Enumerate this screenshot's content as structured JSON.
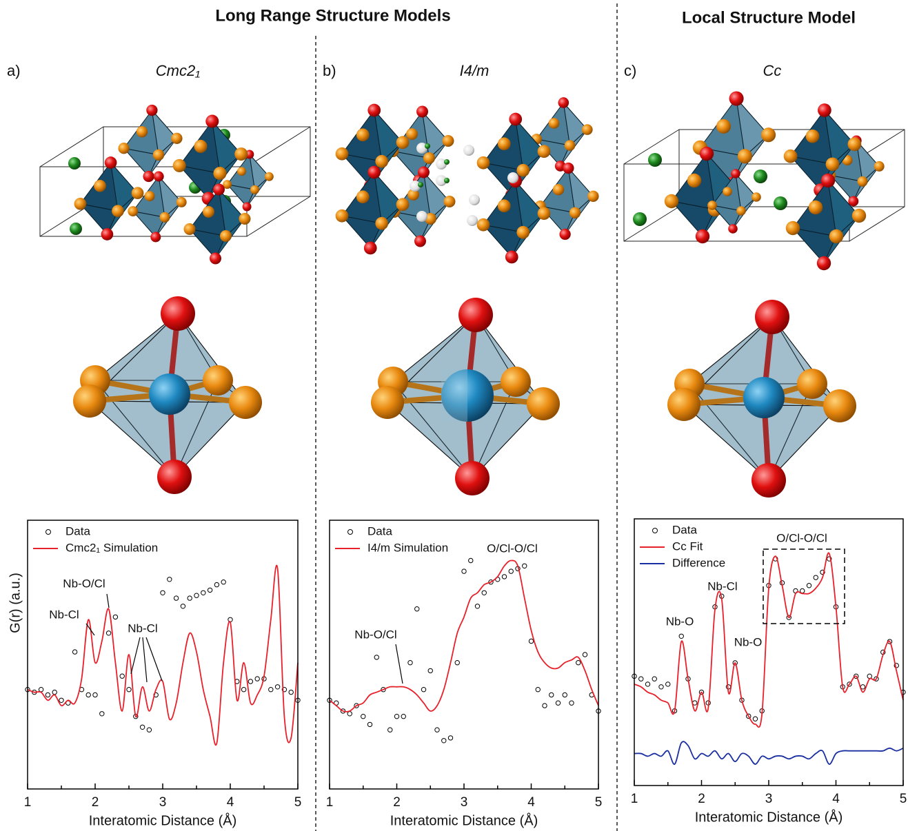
{
  "headers": [
    "Long Range Structure Models",
    "Local Structure Model"
  ],
  "chart_data": [
    {
      "type": "line",
      "panel": "a)",
      "title": "Cmc2₁",
      "x_label": "Interatomic Distance (Å)",
      "y_label": "G(r) (a.u.)",
      "xlim": [
        1,
        5
      ],
      "xticks": [
        1,
        2,
        3,
        4,
        5
      ],
      "xminorticks": [
        1.5,
        2.5,
        3.5,
        4.5
      ],
      "ylim": [
        0,
        10
      ],
      "x": [
        1.0,
        1.1,
        1.2,
        1.3,
        1.4,
        1.5,
        1.6,
        1.7,
        1.8,
        1.9,
        2.0,
        2.1,
        2.2,
        2.3,
        2.4,
        2.5,
        2.6,
        2.7,
        2.8,
        2.9,
        3.0,
        3.1,
        3.2,
        3.3,
        3.4,
        3.5,
        3.6,
        3.7,
        3.8,
        3.9,
        4.0,
        4.1,
        4.2,
        4.3,
        4.4,
        4.5,
        4.6,
        4.7,
        4.8,
        4.9,
        5.0
      ],
      "series": [
        {
          "name": "Data",
          "color": "#000000",
          "marker": "circle",
          "values": [
            3.7,
            3.6,
            3.7,
            3.5,
            3.6,
            3.3,
            3.2,
            5.1,
            3.7,
            3.5,
            3.5,
            2.8,
            5.8,
            6.4,
            4.2,
            3.7,
            2.7,
            2.3,
            2.2,
            3.5,
            7.3,
            7.8,
            7.1,
            6.8,
            7.1,
            7.2,
            7.3,
            7.4,
            7.6,
            7.7,
            6.3,
            4.0,
            3.7,
            4.0,
            4.1,
            4.1,
            3.7,
            3.8,
            3.7,
            3.6,
            3.3
          ]
        },
        {
          "name": "Cmc2₁ Simulation",
          "color": "#e8202a",
          "values": [
            3.7,
            3.6,
            3.6,
            3.3,
            3.5,
            3.1,
            3.3,
            3.2,
            4.1,
            6.3,
            4.7,
            5.5,
            6.7,
            4.7,
            2.9,
            5.0,
            2.7,
            3.8,
            2.9,
            3.7,
            4.0,
            2.6,
            3.2,
            4.7,
            5.8,
            5.1,
            3.7,
            2.7,
            1.7,
            4.7,
            6.2,
            3.3,
            4.7,
            3.2,
            3.5,
            4.2,
            6.3,
            8.2,
            2.7,
            1.9,
            4.7
          ]
        }
      ],
      "annotations": [
        "Nb-Cl",
        "Nb-O/Cl",
        "Nb-Cl"
      ]
    },
    {
      "type": "line",
      "panel": "b)",
      "title": "I4/m",
      "x_label": "Interatomic Distance (Å)",
      "xlim": [
        1,
        5
      ],
      "xticks": [
        1,
        2,
        3,
        4,
        5
      ],
      "xminorticks": [
        1.5,
        2.5,
        3.5,
        4.5
      ],
      "ylim": [
        0,
        10
      ],
      "x": [
        1.0,
        1.1,
        1.2,
        1.3,
        1.4,
        1.5,
        1.6,
        1.7,
        1.8,
        1.9,
        2.0,
        2.1,
        2.2,
        2.3,
        2.4,
        2.5,
        2.6,
        2.7,
        2.8,
        2.9,
        3.0,
        3.1,
        3.2,
        3.3,
        3.4,
        3.5,
        3.6,
        3.7,
        3.8,
        3.9,
        4.0,
        4.1,
        4.2,
        4.3,
        4.4,
        4.5,
        4.6,
        4.7,
        4.8,
        4.9,
        5.0
      ],
      "series": [
        {
          "name": "Data",
          "color": "#000000",
          "marker": "circle",
          "values": [
            3.3,
            3.2,
            2.9,
            2.8,
            3.1,
            2.7,
            2.4,
            4.9,
            3.7,
            2.2,
            2.7,
            2.7,
            4.7,
            6.7,
            3.7,
            4.4,
            2.2,
            1.8,
            1.9,
            4.7,
            8.1,
            8.5,
            6.8,
            7.3,
            7.7,
            7.8,
            7.9,
            8.1,
            8.2,
            8.3,
            5.5,
            3.7,
            3.1,
            3.5,
            3.2,
            3.5,
            3.2,
            4.7,
            5.0,
            3.5,
            2.9
          ]
        },
        {
          "name": "I4/m Simulation",
          "color": "#e8202a",
          "values": [
            3.3,
            3.1,
            2.9,
            2.9,
            3.1,
            3.2,
            3.5,
            3.6,
            3.7,
            3.8,
            3.8,
            3.8,
            3.7,
            3.5,
            3.2,
            2.9,
            3.1,
            3.7,
            4.7,
            5.8,
            6.4,
            7.1,
            7.3,
            7.6,
            7.7,
            7.9,
            8.3,
            8.5,
            8.3,
            7.1,
            5.9,
            5.1,
            4.7,
            4.5,
            4.5,
            4.7,
            4.8,
            4.9,
            4.4,
            3.7,
            3.1
          ]
        }
      ],
      "annotations": [
        "Nb-O/Cl",
        "O/Cl-O/Cl"
      ]
    },
    {
      "type": "line",
      "panel": "c)",
      "title": "Cc",
      "x_label": "Interatomic Distance (Å)",
      "xlim": [
        1,
        5
      ],
      "xticks": [
        1,
        2,
        3,
        4,
        5
      ],
      "xminorticks": [
        1.5,
        2.5,
        3.5,
        4.5
      ],
      "ylim": [
        0,
        10
      ],
      "x": [
        1.0,
        1.1,
        1.2,
        1.3,
        1.4,
        1.5,
        1.6,
        1.7,
        1.8,
        1.9,
        2.0,
        2.1,
        2.2,
        2.3,
        2.4,
        2.5,
        2.6,
        2.7,
        2.8,
        2.9,
        3.0,
        3.1,
        3.2,
        3.3,
        3.4,
        3.5,
        3.6,
        3.7,
        3.8,
        3.9,
        4.0,
        4.1,
        4.2,
        4.3,
        4.4,
        4.5,
        4.6,
        4.7,
        4.8,
        4.9,
        5.0
      ],
      "series": [
        {
          "name": "Data",
          "color": "#000000",
          "marker": "circle",
          "values": [
            4.1,
            4.0,
            3.8,
            4.0,
            3.7,
            3.8,
            2.8,
            5.6,
            4.0,
            3.1,
            3.5,
            3.1,
            6.7,
            7.1,
            3.7,
            4.6,
            3.2,
            2.6,
            2.5,
            2.8,
            7.5,
            8.5,
            7.6,
            6.3,
            7.3,
            7.3,
            7.5,
            7.8,
            8.0,
            8.5,
            6.7,
            3.7,
            3.8,
            4.1,
            3.7,
            4.1,
            4.0,
            5.0,
            5.4,
            4.5,
            3.5
          ]
        },
        {
          "name": "Cc Fit",
          "color": "#e8202a",
          "values": [
            3.8,
            3.7,
            3.5,
            3.4,
            3.2,
            3.1,
            2.8,
            5.4,
            4.0,
            2.8,
            3.5,
            2.9,
            6.6,
            7.0,
            3.5,
            4.6,
            3.2,
            2.6,
            2.3,
            2.7,
            7.4,
            8.6,
            7.5,
            6.3,
            7.2,
            7.2,
            7.2,
            7.4,
            7.8,
            8.7,
            6.7,
            3.7,
            3.8,
            4.1,
            3.5,
            4.0,
            4.0,
            4.9,
            5.4,
            4.3,
            3.2
          ]
        },
        {
          "name": "Difference",
          "color": "#1a2fa0",
          "values": [
            1.2,
            1.2,
            1.1,
            1.2,
            1.1,
            1.3,
            0.8,
            1.6,
            1.5,
            1.0,
            1.2,
            1.1,
            1.3,
            1.0,
            1.2,
            0.9,
            1.2,
            1.1,
            0.8,
            1.1,
            1.0,
            1.1,
            1.1,
            1.0,
            1.1,
            1.1,
            1.0,
            1.2,
            1.3,
            0.8,
            1.2,
            1.3,
            1.3,
            1.3,
            1.3,
            1.3,
            1.3,
            1.3,
            1.4,
            1.3,
            1.4
          ]
        }
      ],
      "annotations": [
        "Nb-O",
        "Nb-Cl",
        "Nb-O",
        "O/Cl-O/Cl"
      ]
    }
  ]
}
